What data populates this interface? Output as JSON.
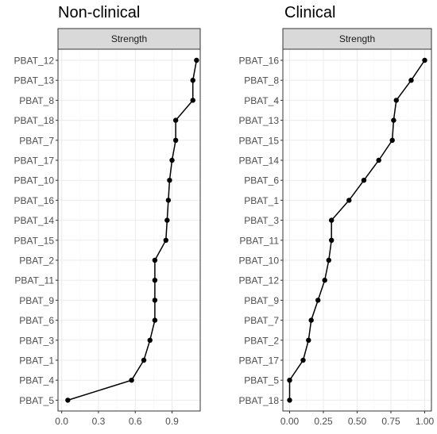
{
  "chart_data": [
    {
      "type": "line",
      "title": "Non-clinical",
      "strip": "Strength",
      "categories": [
        "PBAT_12",
        "PBAT_13",
        "PBAT_8",
        "PBAT_18",
        "PBAT_7",
        "PBAT_17",
        "PBAT_10",
        "PBAT_16",
        "PBAT_14",
        "PBAT_15",
        "PBAT_2",
        "PBAT_11",
        "PBAT_9",
        "PBAT_6",
        "PBAT_3",
        "PBAT_1",
        "PBAT_4",
        "PBAT_5"
      ],
      "values": [
        1.1,
        1.07,
        1.07,
        0.93,
        0.93,
        0.9,
        0.88,
        0.87,
        0.86,
        0.85,
        0.76,
        0.76,
        0.76,
        0.76,
        0.72,
        0.67,
        0.57,
        0.05
      ],
      "xlim": [
        -0.03,
        1.13
      ],
      "xticks": [
        0.0,
        0.3,
        0.6,
        0.9
      ],
      "xtick_labels": [
        "0.0",
        "0.3",
        "0.6",
        "0.9"
      ],
      "xlabel": "",
      "ylabel": "",
      "grid": true
    },
    {
      "type": "line",
      "title": "Clinical",
      "strip": "Strength",
      "categories": [
        "PBAT_16",
        "PBAT_8",
        "PBAT_4",
        "PBAT_13",
        "PBAT_15",
        "PBAT_14",
        "PBAT_6",
        "PBAT_1",
        "PBAT_3",
        "PBAT_11",
        "PBAT_10",
        "PBAT_12",
        "PBAT_9",
        "PBAT_7",
        "PBAT_2",
        "PBAT_17",
        "PBAT_5",
        "PBAT_18"
      ],
      "values": [
        1.0,
        0.9,
        0.79,
        0.77,
        0.76,
        0.66,
        0.55,
        0.44,
        0.31,
        0.31,
        0.29,
        0.26,
        0.21,
        0.16,
        0.14,
        0.1,
        0.0,
        0.0
      ],
      "xlim": [
        -0.05,
        1.05
      ],
      "xticks": [
        0.0,
        0.25,
        0.5,
        0.75,
        1.0
      ],
      "xtick_labels": [
        "0.00",
        "0.25",
        "0.50",
        "0.75",
        "1.00"
      ],
      "xlabel": "",
      "ylabel": "",
      "grid": true
    }
  ]
}
